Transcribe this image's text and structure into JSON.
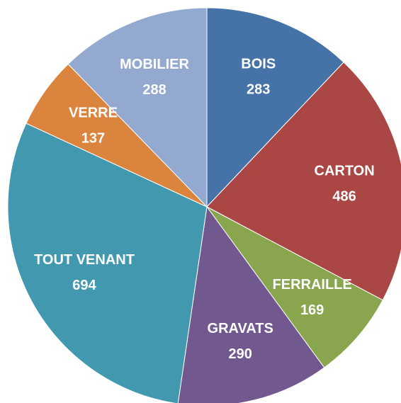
{
  "chart_data": {
    "type": "pie",
    "categories": [
      "BOIS",
      "CARTON",
      "FERRAILLE",
      "GRAVATS",
      "TOUT VENANT",
      "VERRE",
      "MOBILIER"
    ],
    "values": [
      283,
      486,
      169,
      290,
      694,
      137,
      288
    ],
    "colors": [
      "#4572a7",
      "#aa4643",
      "#89a54e",
      "#71588f",
      "#4198af",
      "#db843d",
      "#93a9cf"
    ]
  }
}
